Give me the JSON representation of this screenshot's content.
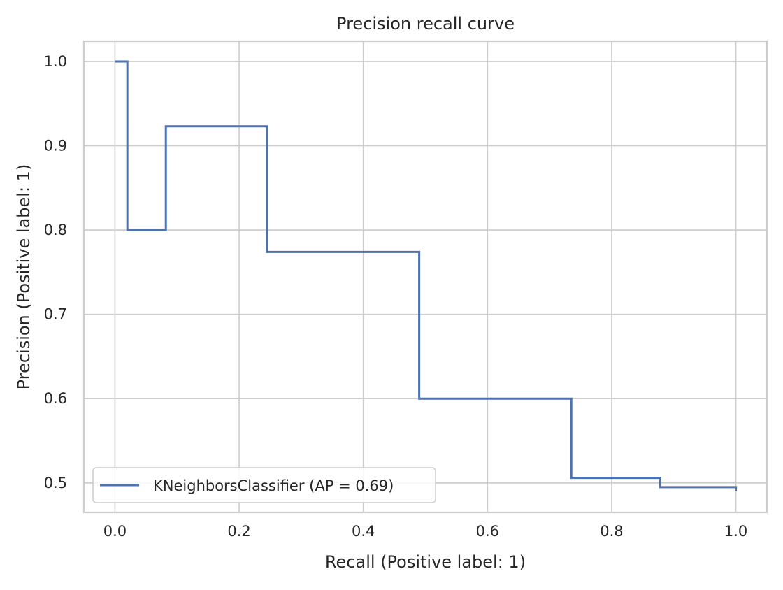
{
  "chart_data": {
    "type": "line",
    "title": "Precision recall curve",
    "xlabel": "Recall (Positive label: 1)",
    "ylabel": "Precision (Positive label: 1)",
    "xlim": [
      -0.05,
      1.05
    ],
    "ylim": [
      0.465,
      1.024
    ],
    "xticks": [
      0.0,
      0.2,
      0.4,
      0.6,
      0.8,
      1.0
    ],
    "xtick_labels": [
      "0.0",
      "0.2",
      "0.4",
      "0.6",
      "0.8",
      "1.0"
    ],
    "yticks": [
      0.5,
      0.6,
      0.7,
      0.8,
      0.9,
      1.0
    ],
    "ytick_labels": [
      "0.5",
      "0.6",
      "0.7",
      "0.8",
      "0.9",
      "1.0"
    ],
    "grid": true,
    "legend_position": "lower-left",
    "series": [
      {
        "name": "KNeighborsClassifier (AP = 0.69)",
        "color": "#4c72b0",
        "step": true,
        "x": [
          0.0,
          0.02,
          0.02,
          0.082,
          0.082,
          0.245,
          0.245,
          0.49,
          0.49,
          0.735,
          0.735,
          0.878,
          0.878,
          1.0,
          1.0
        ],
        "y": [
          1.0,
          1.0,
          0.8,
          0.8,
          0.923,
          0.923,
          0.774,
          0.774,
          0.6,
          0.6,
          0.506,
          0.506,
          0.495,
          0.495,
          0.49
        ]
      }
    ]
  }
}
